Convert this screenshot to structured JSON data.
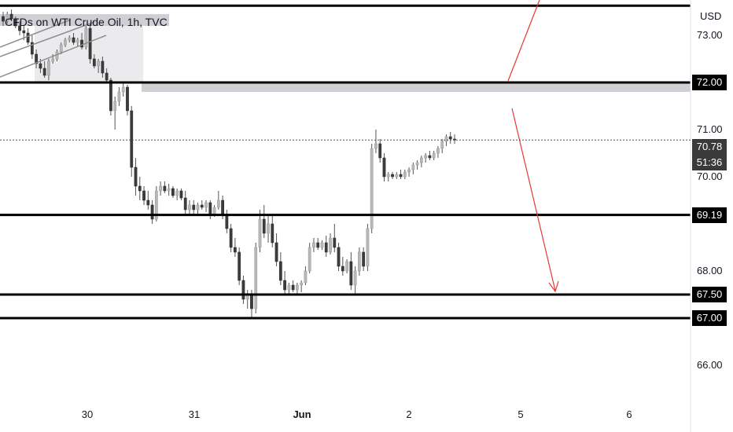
{
  "header": {
    "title": "CFDs on WTI Crude Oil, 1h, TVC",
    "currency": "USD"
  },
  "chart_data": {
    "type": "candlestick",
    "title": "CFDs on WTI Crude Oil, 1h, TVC",
    "ylim": [
      65.25,
      73.75
    ],
    "y_ticks": [
      "73.00",
      "71.00",
      "70.00",
      "68.00",
      "66.00"
    ],
    "x_ticks": [
      {
        "label": "30",
        "bold": false
      },
      {
        "label": "31",
        "bold": false
      },
      {
        "label": "Jun",
        "bold": true
      },
      {
        "label": "2",
        "bold": false
      },
      {
        "label": "5",
        "bold": false
      },
      {
        "label": "6",
        "bold": false
      }
    ],
    "levels": [
      {
        "label": "",
        "value": 73.63
      },
      {
        "label": "72.00",
        "value": 72.0
      },
      {
        "label": "69.19",
        "value": 69.19
      },
      {
        "label": "67.50",
        "value": 67.5
      },
      {
        "label": "67.00",
        "value": 67.0
      }
    ],
    "last_price": {
      "value": 70.78,
      "label": "70.78",
      "countdown": "51:36"
    },
    "zones": [
      {
        "from": 71.8,
        "to": 72.0
      },
      {
        "from": 73.2,
        "to": 73.45
      },
      {
        "from": 72.0,
        "to": 73.2
      }
    ],
    "ohlc": [
      [
        73.4,
        73.5,
        73.2,
        73.3
      ],
      [
        73.3,
        73.5,
        73.25,
        73.45
      ],
      [
        73.45,
        73.55,
        73.3,
        73.35
      ],
      [
        73.35,
        73.4,
        73.15,
        73.2
      ],
      [
        73.2,
        73.3,
        73.0,
        73.1
      ],
      [
        73.1,
        73.2,
        72.9,
        73.05
      ],
      [
        73.05,
        73.15,
        72.8,
        72.85
      ],
      [
        72.85,
        73.0,
        72.5,
        72.6
      ],
      [
        72.6,
        72.7,
        72.3,
        72.4
      ],
      [
        72.4,
        72.5,
        72.2,
        72.3
      ],
      [
        72.3,
        72.45,
        72.1,
        72.15
      ],
      [
        72.15,
        72.5,
        72.05,
        72.45
      ],
      [
        72.45,
        72.6,
        72.4,
        72.5
      ],
      [
        72.5,
        72.7,
        72.45,
        72.65
      ],
      [
        72.65,
        72.85,
        72.6,
        72.8
      ],
      [
        72.8,
        72.95,
        72.75,
        72.9
      ],
      [
        72.9,
        73.0,
        72.85,
        72.95
      ],
      [
        72.95,
        73.05,
        72.8,
        72.85
      ],
      [
        72.85,
        72.95,
        72.75,
        72.9
      ],
      [
        72.9,
        73.05,
        72.7,
        72.75
      ],
      [
        72.75,
        73.2,
        72.7,
        73.15
      ],
      [
        73.15,
        73.25,
        72.4,
        72.5
      ],
      [
        72.5,
        72.6,
        72.3,
        72.35
      ],
      [
        72.35,
        72.5,
        72.2,
        72.45
      ],
      [
        72.45,
        72.55,
        72.1,
        72.2
      ],
      [
        72.2,
        72.3,
        72.0,
        72.05
      ],
      [
        72.05,
        72.1,
        71.3,
        71.4
      ],
      [
        71.4,
        71.7,
        71.0,
        71.6
      ],
      [
        71.6,
        71.9,
        71.5,
        71.8
      ],
      [
        71.8,
        72.0,
        71.7,
        71.9
      ],
      [
        71.9,
        71.95,
        71.3,
        71.4
      ],
      [
        71.4,
        71.5,
        70.0,
        70.2
      ],
      [
        70.2,
        70.4,
        69.6,
        69.8
      ],
      [
        69.8,
        70.0,
        69.5,
        69.7
      ],
      [
        69.7,
        69.8,
        69.4,
        69.5
      ],
      [
        69.5,
        69.7,
        69.3,
        69.4
      ],
      [
        69.4,
        69.5,
        69.0,
        69.1
      ],
      [
        69.1,
        69.8,
        69.05,
        69.7
      ],
      [
        69.7,
        69.9,
        69.6,
        69.8
      ],
      [
        69.8,
        69.9,
        69.65,
        69.7
      ],
      [
        69.7,
        69.85,
        69.6,
        69.75
      ],
      [
        69.75,
        69.8,
        69.55,
        69.6
      ],
      [
        69.6,
        69.75,
        69.5,
        69.7
      ],
      [
        69.7,
        69.75,
        69.5,
        69.55
      ],
      [
        69.55,
        69.7,
        69.2,
        69.3
      ],
      [
        69.3,
        69.5,
        69.2,
        69.4
      ],
      [
        69.4,
        69.5,
        69.2,
        69.3
      ],
      [
        69.3,
        69.45,
        69.2,
        69.4
      ],
      [
        69.4,
        69.5,
        69.3,
        69.35
      ],
      [
        69.35,
        69.5,
        69.25,
        69.45
      ],
      [
        69.45,
        69.5,
        69.1,
        69.2
      ],
      [
        69.2,
        69.4,
        69.15,
        69.35
      ],
      [
        69.35,
        69.7,
        69.3,
        69.5
      ],
      [
        69.5,
        69.6,
        69.1,
        69.2
      ],
      [
        69.2,
        69.3,
        68.8,
        68.9
      ],
      [
        68.9,
        69.0,
        68.4,
        68.5
      ],
      [
        68.5,
        68.7,
        68.3,
        68.4
      ],
      [
        68.4,
        68.5,
        67.7,
        67.8
      ],
      [
        67.8,
        67.9,
        67.3,
        67.4
      ],
      [
        67.4,
        67.6,
        67.2,
        67.5
      ],
      [
        67.5,
        67.6,
        67.0,
        67.2
      ],
      [
        67.2,
        68.6,
        67.1,
        68.5
      ],
      [
        68.5,
        69.3,
        68.4,
        69.1
      ],
      [
        69.1,
        69.4,
        68.7,
        68.8
      ],
      [
        68.8,
        69.2,
        68.6,
        69.0
      ],
      [
        69.0,
        69.2,
        68.5,
        68.6
      ],
      [
        68.6,
        68.8,
        68.1,
        68.2
      ],
      [
        68.2,
        68.4,
        67.7,
        67.8
      ],
      [
        67.8,
        68.0,
        67.5,
        67.6
      ],
      [
        67.6,
        67.75,
        67.5,
        67.7
      ],
      [
        67.7,
        67.8,
        67.55,
        67.6
      ],
      [
        67.6,
        67.75,
        67.5,
        67.7
      ],
      [
        67.7,
        67.8,
        67.55,
        67.75
      ],
      [
        67.75,
        68.1,
        67.7,
        68.0
      ],
      [
        68.0,
        68.6,
        67.95,
        68.5
      ],
      [
        68.5,
        68.7,
        68.4,
        68.6
      ],
      [
        68.6,
        68.7,
        68.45,
        68.5
      ],
      [
        68.5,
        68.65,
        68.45,
        68.6
      ],
      [
        68.6,
        68.75,
        68.3,
        68.4
      ],
      [
        68.4,
        68.8,
        68.35,
        68.7
      ],
      [
        68.7,
        69.0,
        68.4,
        68.5
      ],
      [
        68.5,
        68.6,
        68.0,
        68.1
      ],
      [
        68.1,
        68.3,
        67.9,
        68.0
      ],
      [
        68.0,
        68.25,
        67.95,
        68.2
      ],
      [
        68.2,
        68.4,
        67.6,
        67.7
      ],
      [
        67.7,
        68.1,
        67.5,
        68.0
      ],
      [
        68.0,
        68.5,
        67.9,
        68.4
      ],
      [
        68.4,
        68.5,
        68.0,
        68.1
      ],
      [
        68.1,
        69.0,
        68.0,
        68.9
      ],
      [
        68.9,
        70.7,
        68.8,
        70.6
      ],
      [
        70.6,
        71.0,
        70.5,
        70.7
      ],
      [
        70.7,
        70.8,
        70.3,
        70.4
      ],
      [
        70.4,
        70.5,
        69.9,
        70.0
      ],
      [
        70.0,
        70.1,
        69.9,
        70.05
      ],
      [
        70.05,
        70.1,
        69.95,
        70.0
      ],
      [
        70.0,
        70.1,
        69.95,
        70.05
      ],
      [
        70.05,
        70.15,
        69.95,
        70.0
      ],
      [
        70.0,
        70.15,
        69.95,
        70.1
      ],
      [
        70.1,
        70.2,
        70.0,
        70.15
      ],
      [
        70.15,
        70.3,
        70.05,
        70.25
      ],
      [
        70.25,
        70.35,
        70.15,
        70.3
      ],
      [
        70.3,
        70.45,
        70.2,
        70.4
      ],
      [
        70.4,
        70.5,
        70.3,
        70.45
      ],
      [
        70.45,
        70.55,
        70.35,
        70.4
      ],
      [
        70.4,
        70.55,
        70.35,
        70.5
      ],
      [
        70.5,
        70.65,
        70.4,
        70.6
      ],
      [
        70.6,
        70.8,
        70.5,
        70.75
      ],
      [
        70.75,
        70.9,
        70.65,
        70.85
      ],
      [
        70.85,
        70.95,
        70.7,
        70.8
      ],
      [
        70.8,
        70.9,
        70.7,
        70.78
      ]
    ]
  },
  "colors": {
    "up": "#b8b8b8",
    "down": "#3c3c3c",
    "level": "#000000",
    "zone": "#cfcfd4",
    "arrow": "#e53935"
  }
}
